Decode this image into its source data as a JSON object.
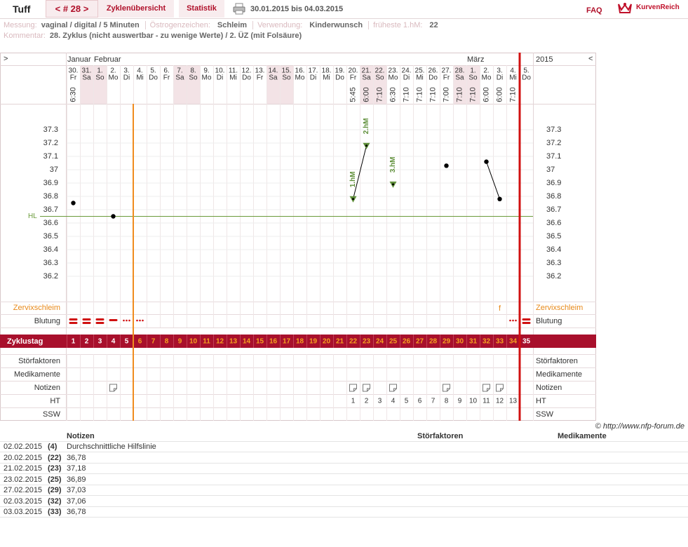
{
  "header": {
    "user": "Tuff",
    "cycle_nav": "< # 28 >",
    "tabs": [
      "Zyklenübersicht",
      "Statistik"
    ],
    "date_range": "30.01.2015 bis 04.03.2015",
    "faq": "FAQ",
    "logo": "KurvenReich"
  },
  "info": {
    "measurement_label": "Messung:",
    "measurement": "vaginal / digital / 5 Minuten",
    "estrogen_label": "Östrogenzeichen:",
    "estrogen": "Schleim",
    "usage_label": "Verwendung:",
    "usage": "Kinderwunsch",
    "earliest_label": "früheste 1.hM:",
    "earliest": "22",
    "comment_label": "Kommentar:",
    "comment": "28. Zyklus (nicht auswertbar - zu wenige Werte) / 2. ÜZ (mit Folsäure)"
  },
  "chart_data": {
    "type": "line",
    "nav_left": ">",
    "nav_right": "<",
    "year": "2015",
    "months": [
      "Januar",
      null,
      "Februar",
      null,
      null,
      null,
      null,
      null,
      null,
      null,
      null,
      null,
      null,
      null,
      null,
      null,
      null,
      null,
      null,
      null,
      null,
      null,
      null,
      null,
      null,
      null,
      null,
      null,
      null,
      null,
      "März",
      null,
      null,
      null,
      null
    ],
    "dates": [
      "30.",
      "31.",
      "1.",
      "2.",
      "3.",
      "4.",
      "5.",
      "6.",
      "7.",
      "8.",
      "9.",
      "10.",
      "11.",
      "12.",
      "13.",
      "14.",
      "15.",
      "16.",
      "17.",
      "18.",
      "19.",
      "20.",
      "21.",
      "22.",
      "23.",
      "24.",
      "25.",
      "26.",
      "27.",
      "28.",
      "1.",
      "2.",
      "3.",
      "4.",
      "5."
    ],
    "weekdays": [
      "Fr",
      "Sa",
      "So",
      "Mo",
      "Di",
      "Mi",
      "Do",
      "Fr",
      "Sa",
      "So",
      "Mo",
      "Di",
      "Mi",
      "Do",
      "Fr",
      "Sa",
      "So",
      "Mo",
      "Di",
      "Mi",
      "Do",
      "Fr",
      "Sa",
      "So",
      "Mo",
      "Di",
      "Mi",
      "Do",
      "Fr",
      "Sa",
      "So",
      "Mo",
      "Di",
      "Mi",
      "Do"
    ],
    "weekend": [
      false,
      true,
      true,
      false,
      false,
      false,
      false,
      false,
      true,
      true,
      false,
      false,
      false,
      false,
      false,
      true,
      true,
      false,
      false,
      false,
      false,
      false,
      true,
      true,
      false,
      false,
      false,
      false,
      false,
      true,
      true,
      false,
      false,
      false,
      false
    ],
    "times": [
      "6:30",
      null,
      null,
      null,
      null,
      null,
      null,
      null,
      null,
      null,
      null,
      null,
      null,
      null,
      null,
      null,
      null,
      null,
      null,
      null,
      null,
      "5:45",
      "6:00",
      "7:10",
      "6:30",
      "7:10",
      "7:10",
      "7:10",
      "7:00",
      "7:10",
      "7:10",
      "6:00",
      "6:00",
      "7:10",
      null
    ],
    "values": [
      36.75,
      null,
      null,
      36.65,
      null,
      null,
      null,
      null,
      null,
      null,
      null,
      null,
      null,
      null,
      null,
      null,
      null,
      null,
      null,
      null,
      null,
      36.78,
      37.18,
      null,
      36.89,
      null,
      null,
      null,
      37.03,
      null,
      null,
      37.06,
      36.78,
      null,
      null
    ],
    "color": "#000000",
    "ylim": [
      36.0,
      37.5
    ],
    "yticks": [
      36.2,
      36.3,
      36.4,
      36.5,
      36.6,
      36.7,
      36.8,
      36.9,
      37,
      37.1,
      37.2,
      37.3
    ],
    "grid": true,
    "hl_label": "HL",
    "hl_value": 36.65,
    "hl_color": "#6a9a3a",
    "hm_labels": [
      {
        "day": 22,
        "label": "1.hM"
      },
      {
        "day": 23,
        "label": "2.hM"
      },
      {
        "day": 25,
        "label": "3.hM"
      }
    ],
    "hm_color": "#5f8f3a",
    "rows": {
      "mucus": "Zervixschleim",
      "bleeding": "Blutung",
      "cycle_day": "Zyklustag",
      "disturbances": "Störfaktoren",
      "medication": "Medikamente",
      "notes": "Notizen",
      "ht": "HT",
      "ssw": "SSW"
    },
    "mucus": [
      null,
      null,
      null,
      null,
      null,
      null,
      null,
      null,
      null,
      null,
      null,
      null,
      null,
      null,
      null,
      null,
      null,
      null,
      null,
      null,
      null,
      null,
      null,
      null,
      null,
      null,
      null,
      null,
      null,
      null,
      null,
      null,
      "f",
      null,
      null
    ],
    "bleeding": [
      "heavy",
      "heavy",
      "heavy",
      "medium",
      "spotting",
      "spotting",
      null,
      null,
      null,
      null,
      null,
      null,
      null,
      null,
      null,
      null,
      null,
      null,
      null,
      null,
      null,
      null,
      null,
      null,
      null,
      null,
      null,
      null,
      null,
      null,
      null,
      null,
      null,
      "spotting",
      "heavy"
    ],
    "cycle_days": [
      1,
      2,
      3,
      4,
      5,
      6,
      7,
      8,
      9,
      10,
      11,
      12,
      13,
      14,
      15,
      16,
      17,
      18,
      19,
      20,
      21,
      22,
      23,
      24,
      25,
      26,
      27,
      28,
      29,
      30,
      31,
      32,
      33,
      34,
      35
    ],
    "cycle_day_colors": [
      "#ffffff",
      "#ffffff",
      "#ffffff",
      "#ffffff",
      "#ffffff",
      "#f5a020",
      "#f5a020",
      "#f5a020",
      "#f5a020",
      "#f5a020",
      "#f5a020",
      "#f5a020",
      "#f5a020",
      "#f5a020",
      "#f5a020",
      "#f5a020",
      "#f5a020",
      "#f5a020",
      "#f5a020",
      "#f5a020",
      "#f5a020",
      "#f5a020",
      "#f5a020",
      "#f5a020",
      "#f5a020",
      "#f5a020",
      "#f5a020",
      "#f5a020",
      "#f5a020",
      "#f5a020",
      "#f5a020",
      "#f5a020",
      "#f5a020",
      "#f5a020",
      "#ffffff"
    ],
    "notes": [
      false,
      false,
      false,
      true,
      false,
      false,
      false,
      false,
      false,
      false,
      false,
      false,
      false,
      false,
      false,
      false,
      false,
      false,
      false,
      false,
      false,
      true,
      true,
      false,
      true,
      false,
      false,
      false,
      true,
      false,
      false,
      true,
      true,
      false,
      false
    ],
    "ht": [
      null,
      null,
      null,
      null,
      null,
      null,
      null,
      null,
      null,
      null,
      null,
      null,
      null,
      null,
      null,
      null,
      null,
      null,
      null,
      null,
      null,
      1,
      2,
      3,
      4,
      5,
      6,
      7,
      8,
      9,
      10,
      11,
      12,
      13,
      null
    ]
  },
  "copyright": "© http://www.nfp-forum.de",
  "notes_table": {
    "headers": [
      "Notizen",
      "Störfaktoren",
      "Medikamente"
    ],
    "rows": [
      [
        "02.02.2015",
        "(4)",
        "Durchschnittliche Hilfslinie"
      ],
      [
        "20.02.2015",
        "(22)",
        "36,78"
      ],
      [
        "21.02.2015",
        "(23)",
        "37,18"
      ],
      [
        "23.02.2015",
        "(25)",
        "36,89"
      ],
      [
        "27.02.2015",
        "(29)",
        "37,03"
      ],
      [
        "02.03.2015",
        "(32)",
        "37,06"
      ],
      [
        "03.03.2015",
        "(33)",
        "36,78"
      ]
    ]
  }
}
